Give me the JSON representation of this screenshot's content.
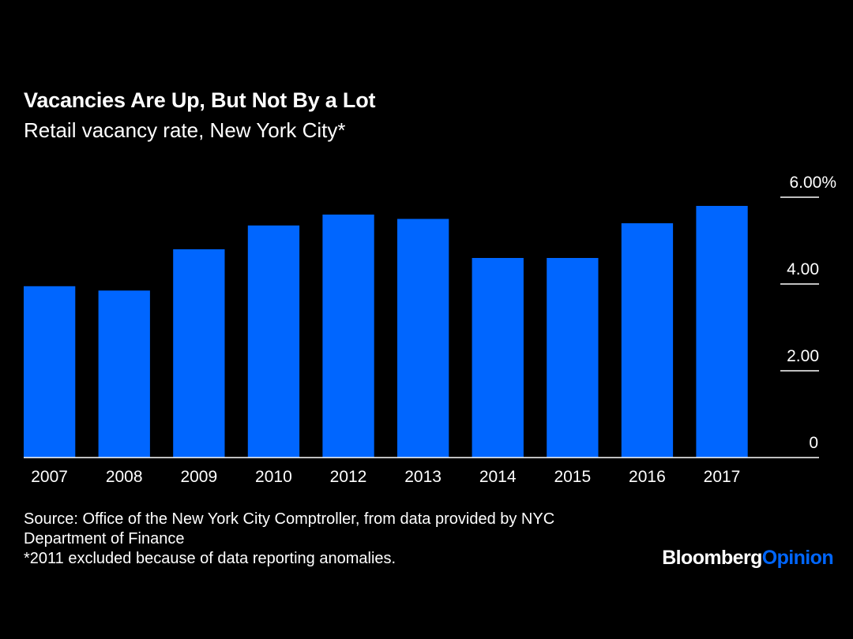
{
  "chart_data": {
    "type": "bar",
    "title": "Vacancies Are Up, But Not By a Lot",
    "subtitle": "Retail vacancy rate, New York City*",
    "categories": [
      "2007",
      "2008",
      "2009",
      "2010",
      "2012",
      "2013",
      "2014",
      "2015",
      "2016",
      "2017"
    ],
    "values": [
      3.95,
      3.85,
      4.8,
      5.35,
      5.6,
      5.5,
      4.6,
      4.6,
      5.4,
      5.8
    ],
    "ylim": [
      0,
      6
    ],
    "y_ticks": [
      {
        "value": 0,
        "label": "0"
      },
      {
        "value": 2,
        "label": "2.00"
      },
      {
        "value": 4,
        "label": "4.00"
      },
      {
        "value": 6,
        "label": "6.00%"
      }
    ],
    "y_axis_side": "right",
    "grid": false,
    "bar_color": "#0066ff"
  },
  "notes": {
    "source_line1": "Source: Office of the New York City Comptroller, from data provided by NYC",
    "source_line2": "Department of Finance",
    "footnote": "*2011 excluded because of data reporting anomalies."
  },
  "logo": {
    "part1": "Bloomberg",
    "part2": "Opinion"
  },
  "colors": {
    "background": "#000000",
    "text": "#ffffff",
    "bar": "#0066ff",
    "brand_accent": "#0066ff"
  }
}
